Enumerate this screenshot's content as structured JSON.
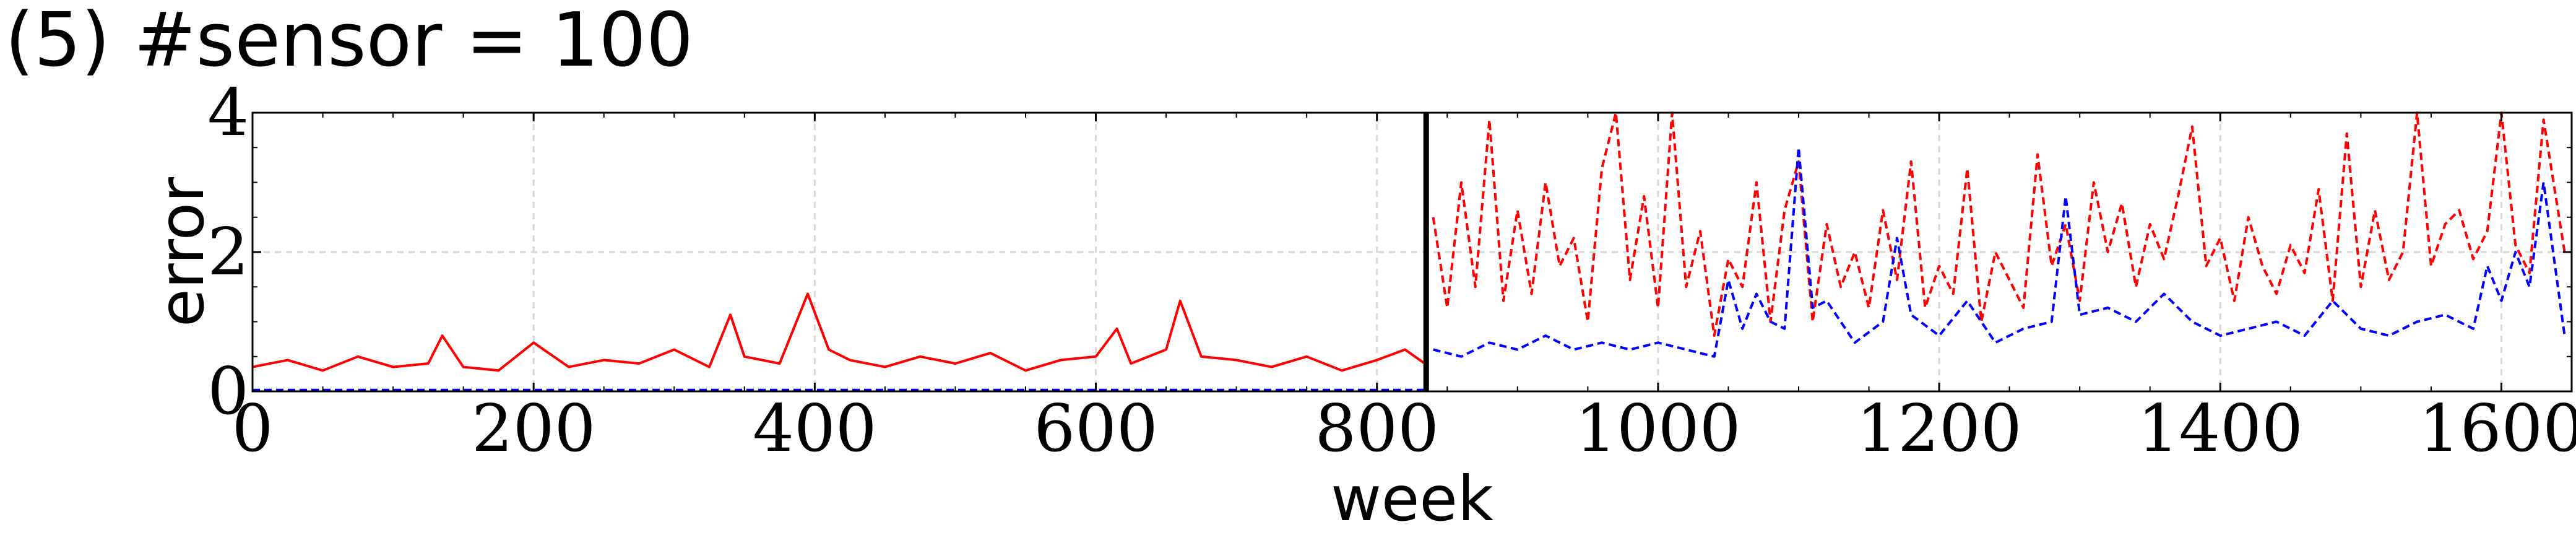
{
  "title": "(5) #sensor = 100",
  "chart_data": {
    "type": "line",
    "xlabel": "week",
    "ylabel": "error",
    "xlim": [
      0,
      1650
    ],
    "ylim": [
      0,
      4
    ],
    "xticks": [
      0,
      200,
      400,
      600,
      800,
      1000,
      1200,
      1400,
      1600
    ],
    "yticks": [
      0,
      2,
      4
    ],
    "grid": true,
    "split_week": 835,
    "series": [
      {
        "color": "#ff0000",
        "style": "solid",
        "x": [
          0,
          25,
          50,
          75,
          100,
          125,
          135,
          150,
          175,
          200,
          225,
          250,
          275,
          300,
          325,
          340,
          350,
          375,
          395,
          410,
          425,
          450,
          475,
          500,
          525,
          550,
          575,
          600,
          615,
          625,
          650,
          660,
          675,
          700,
          725,
          750,
          775,
          800,
          820,
          834
        ],
        "y": [
          0.35,
          0.45,
          0.3,
          0.5,
          0.35,
          0.4,
          0.8,
          0.35,
          0.3,
          0.7,
          0.35,
          0.45,
          0.4,
          0.6,
          0.35,
          1.1,
          0.5,
          0.4,
          1.4,
          0.6,
          0.45,
          0.35,
          0.5,
          0.4,
          0.55,
          0.3,
          0.45,
          0.5,
          0.9,
          0.4,
          0.6,
          1.3,
          0.5,
          0.45,
          0.35,
          0.5,
          0.3,
          0.45,
          0.6,
          0.4
        ]
      },
      {
        "color": "#ff0000",
        "style": "dashed",
        "x": [
          840,
          850,
          860,
          870,
          880,
          890,
          900,
          910,
          920,
          930,
          940,
          950,
          960,
          970,
          980,
          990,
          1000,
          1010,
          1020,
          1030,
          1040,
          1050,
          1060,
          1070,
          1080,
          1090,
          1100,
          1110,
          1120,
          1130,
          1140,
          1150,
          1160,
          1170,
          1180,
          1190,
          1200,
          1210,
          1220,
          1230,
          1240,
          1250,
          1260,
          1270,
          1280,
          1290,
          1300,
          1310,
          1320,
          1330,
          1340,
          1350,
          1360,
          1370,
          1380,
          1390,
          1400,
          1410,
          1420,
          1430,
          1440,
          1450,
          1460,
          1470,
          1480,
          1490,
          1500,
          1510,
          1520,
          1530,
          1540,
          1550,
          1560,
          1570,
          1580,
          1590,
          1600,
          1610,
          1620,
          1630,
          1645
        ],
        "y": [
          2.5,
          1.2,
          3.0,
          1.5,
          3.9,
          1.3,
          2.6,
          1.4,
          3.0,
          1.8,
          2.2,
          1.0,
          3.2,
          4.0,
          1.6,
          2.8,
          1.2,
          4.0,
          1.5,
          2.3,
          0.8,
          1.9,
          1.5,
          3.0,
          1.0,
          2.6,
          3.3,
          1.0,
          2.4,
          1.5,
          2.0,
          1.2,
          2.6,
          1.6,
          3.3,
          1.2,
          1.8,
          1.4,
          3.2,
          1.0,
          2.0,
          1.6,
          1.2,
          3.4,
          1.8,
          2.4,
          1.3,
          3.0,
          2.0,
          2.7,
          1.5,
          2.4,
          1.9,
          2.8,
          3.8,
          1.8,
          2.2,
          1.3,
          2.5,
          1.8,
          1.4,
          2.1,
          1.7,
          2.9,
          1.3,
          3.7,
          1.5,
          2.6,
          1.6,
          2.0,
          4.0,
          1.8,
          2.4,
          2.6,
          1.9,
          2.3,
          4.0,
          2.1,
          1.7,
          3.9,
          2.0
        ]
      },
      {
        "color": "#0000ff",
        "style": "dashed",
        "x": [
          0,
          834
        ],
        "y": [
          0.02,
          0.02
        ]
      },
      {
        "color": "#0000ff",
        "style": "dashed",
        "x": [
          840,
          860,
          880,
          900,
          920,
          940,
          960,
          980,
          1000,
          1020,
          1040,
          1050,
          1060,
          1070,
          1080,
          1090,
          1100,
          1110,
          1120,
          1140,
          1160,
          1170,
          1180,
          1200,
          1220,
          1240,
          1260,
          1280,
          1290,
          1300,
          1320,
          1340,
          1360,
          1380,
          1400,
          1420,
          1440,
          1460,
          1480,
          1500,
          1520,
          1540,
          1560,
          1580,
          1590,
          1600,
          1610,
          1620,
          1630,
          1645
        ],
        "y": [
          0.6,
          0.5,
          0.7,
          0.6,
          0.8,
          0.6,
          0.7,
          0.6,
          0.7,
          0.6,
          0.5,
          1.6,
          0.9,
          1.4,
          1.0,
          0.9,
          3.5,
          1.2,
          1.3,
          0.7,
          1.0,
          2.2,
          1.1,
          0.8,
          1.3,
          0.7,
          0.9,
          1.0,
          2.8,
          1.1,
          1.2,
          1.0,
          1.4,
          1.0,
          0.8,
          0.9,
          1.0,
          0.8,
          1.3,
          0.9,
          0.8,
          1.0,
          1.1,
          0.9,
          1.8,
          1.3,
          2.0,
          1.5,
          3.0,
          0.8
        ]
      }
    ]
  }
}
